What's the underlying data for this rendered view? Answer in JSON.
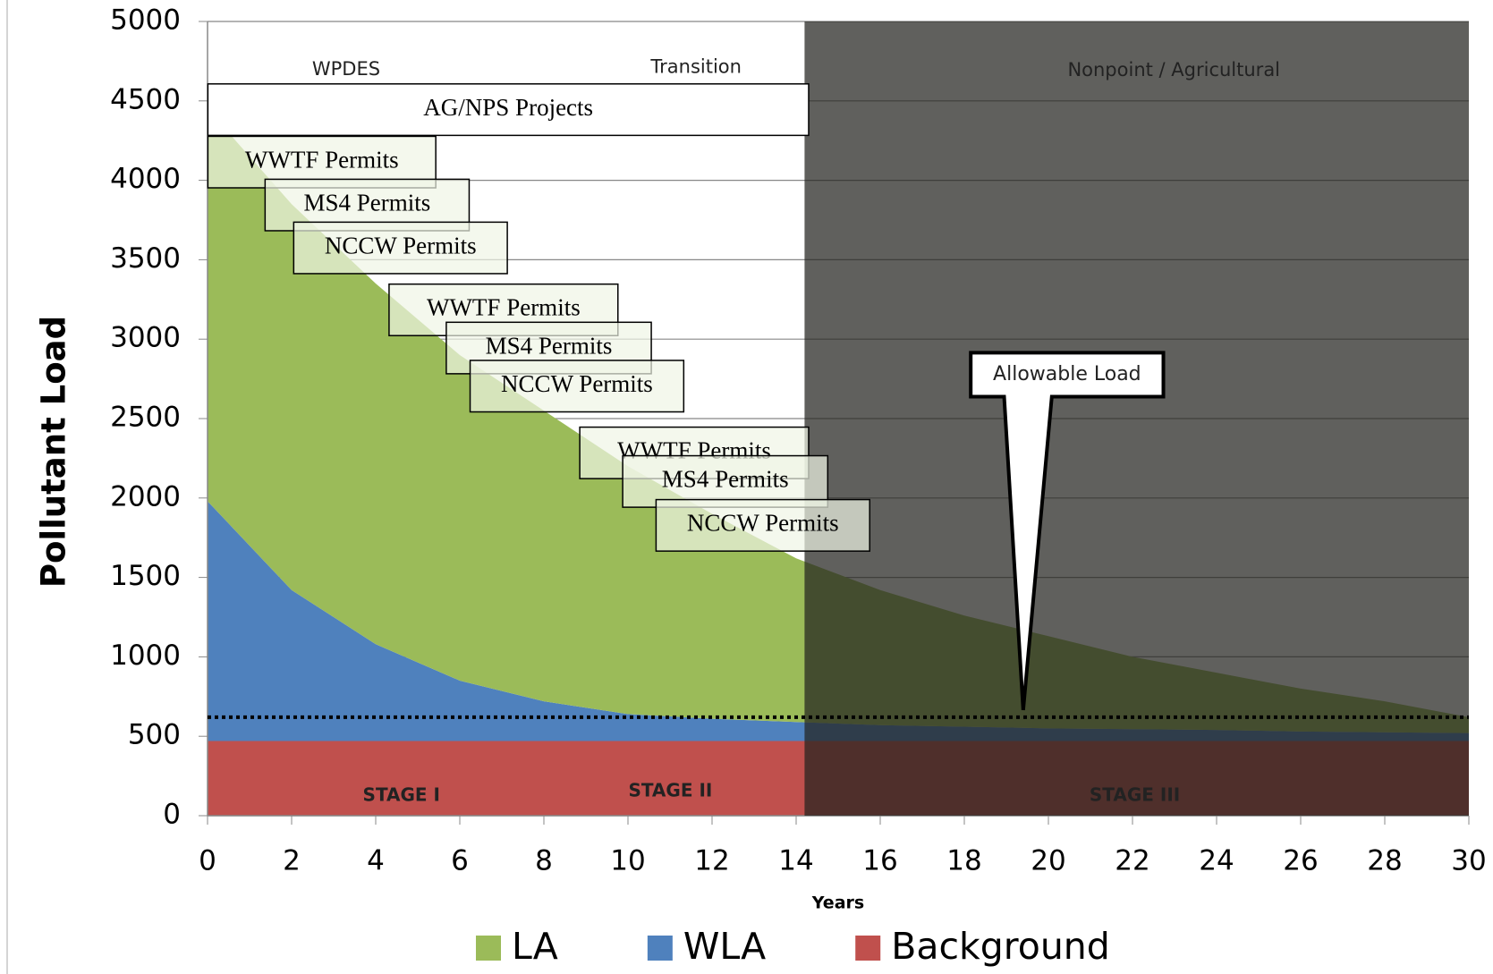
{
  "chart_data": {
    "type": "stacked_area",
    "y_label": "Pollutant Load",
    "x_label": "Years",
    "x": [
      0,
      2,
      4,
      6,
      8,
      10,
      12,
      14,
      16,
      18,
      20,
      22,
      24,
      26,
      28,
      30
    ],
    "series": [
      {
        "name": "Background",
        "color": "#c0504d",
        "values": [
          470,
          470,
          470,
          470,
          470,
          470,
          470,
          470,
          470,
          470,
          470,
          470,
          470,
          470,
          470,
          470
        ]
      },
      {
        "name": "WLA",
        "color": "#4f81bd",
        "values": [
          1510,
          950,
          610,
          380,
          250,
          170,
          140,
          120,
          100,
          90,
          80,
          75,
          70,
          60,
          55,
          50
        ]
      },
      {
        "name": "LA",
        "color": "#9bbb59",
        "values": [
          2470,
          2430,
          2270,
          2050,
          1830,
          1560,
          1290,
          1030,
          850,
          700,
          580,
          455,
          360,
          270,
          195,
          100
        ]
      }
    ],
    "legend_order": [
      2,
      1,
      0
    ],
    "xlim": [
      0,
      30
    ],
    "xticks": [
      0,
      2,
      4,
      6,
      8,
      10,
      12,
      14,
      16,
      18,
      20,
      22,
      24,
      26,
      28,
      30
    ],
    "ylim": [
      0,
      5000
    ],
    "yticks": [
      0,
      500,
      1000,
      1500,
      2000,
      2500,
      3000,
      3500,
      4000,
      4500,
      5000
    ],
    "grid": true,
    "shaded_region": {
      "from": 14.2,
      "to": 30
    },
    "reference_line": {
      "label": "Allowable Load",
      "value": 620
    },
    "phase_labels": [
      "WPDES",
      "Transition",
      "Nonpoint / Agricultural"
    ],
    "stage_labels": [
      "STAGE I",
      "STAGE II",
      "STAGE III"
    ],
    "boxes": [
      "AG/NPS Projects",
      "WWTF Permits",
      "MS4 Permits",
      "NCCW Permits",
      "WWTF Permits",
      "MS4 Permits",
      "NCCW Permits",
      "WWTF Permits",
      "MS4 Permits",
      "NCCW Permits"
    ]
  }
}
